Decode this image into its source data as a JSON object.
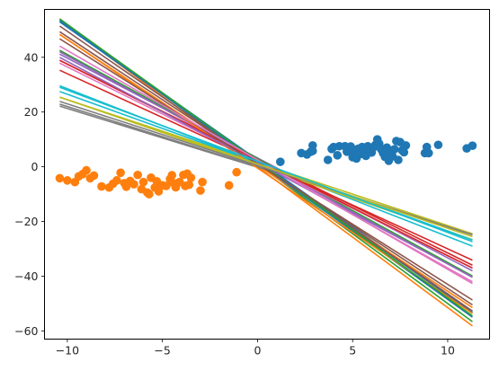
{
  "chart_data": {
    "type": "scatter",
    "title": "",
    "xlabel": "",
    "ylabel": "",
    "xlim": [
      -11.2,
      12.2
    ],
    "ylim": [
      -63,
      57.5
    ],
    "x_ticks": [
      -10,
      -5,
      0,
      5,
      10
    ],
    "y_ticks": [
      -60,
      -40,
      -20,
      0,
      20,
      40
    ],
    "x_tick_labels": [
      "−10",
      "−5",
      "0",
      "5",
      "10"
    ],
    "y_tick_labels": [
      "−60",
      "−40",
      "−20",
      "0",
      "20",
      "40"
    ],
    "grid": false,
    "line_x_range": [
      -10.4,
      11.3
    ],
    "scatter_series": [
      {
        "color": "#1f77b4",
        "points": [
          [
            1.2,
            1.8
          ],
          [
            2.3,
            5.0
          ],
          [
            2.6,
            4.5
          ],
          [
            2.8,
            5.5
          ],
          [
            2.9,
            7.8
          ],
          [
            2.9,
            5.8
          ],
          [
            3.7,
            2.5
          ],
          [
            3.9,
            6.5
          ],
          [
            4.0,
            7.2
          ],
          [
            4.2,
            4.2
          ],
          [
            4.3,
            7.5
          ],
          [
            4.6,
            7.5
          ],
          [
            4.7,
            5.5
          ],
          [
            4.8,
            6.3
          ],
          [
            4.9,
            7.4
          ],
          [
            5.0,
            3.5
          ],
          [
            5.1,
            5.0
          ],
          [
            5.2,
            3.0
          ],
          [
            5.3,
            6.6
          ],
          [
            5.4,
            4.6
          ],
          [
            5.5,
            7.2
          ],
          [
            5.6,
            5.3
          ],
          [
            5.7,
            4.0
          ],
          [
            5.8,
            7.5
          ],
          [
            5.9,
            6.0
          ],
          [
            6.0,
            5.2
          ],
          [
            6.1,
            7.1
          ],
          [
            6.2,
            8.0
          ],
          [
            6.3,
            10.0
          ],
          [
            6.4,
            8.4
          ],
          [
            6.5,
            6.4
          ],
          [
            6.6,
            5.0
          ],
          [
            6.7,
            3.6
          ],
          [
            6.8,
            7.0
          ],
          [
            6.9,
            2.2
          ],
          [
            7.0,
            5.5
          ],
          [
            7.1,
            3.8
          ],
          [
            7.2,
            6.4
          ],
          [
            7.3,
            9.4
          ],
          [
            7.4,
            2.5
          ],
          [
            7.5,
            9.0
          ],
          [
            7.6,
            6.0
          ],
          [
            7.7,
            5.3
          ],
          [
            7.8,
            7.8
          ],
          [
            8.8,
            5.0
          ],
          [
            8.9,
            7.2
          ],
          [
            9.0,
            5.0
          ],
          [
            9.5,
            8.0
          ],
          [
            11.0,
            6.7
          ],
          [
            11.3,
            7.7
          ]
        ]
      },
      {
        "color": "#ff7f0e",
        "points": [
          [
            -10.4,
            -4.2
          ],
          [
            -10.0,
            -5.0
          ],
          [
            -9.6,
            -5.6
          ],
          [
            -9.4,
            -3.5
          ],
          [
            -9.2,
            -2.7
          ],
          [
            -9.0,
            -1.3
          ],
          [
            -8.8,
            -4.2
          ],
          [
            -8.6,
            -3.2
          ],
          [
            -8.2,
            -7.2
          ],
          [
            -7.8,
            -7.6
          ],
          [
            -7.6,
            -6.2
          ],
          [
            -7.4,
            -5.0
          ],
          [
            -7.2,
            -2.2
          ],
          [
            -7.0,
            -6.0
          ],
          [
            -6.9,
            -7.3
          ],
          [
            -6.7,
            -5.2
          ],
          [
            -6.5,
            -6.4
          ],
          [
            -6.3,
            -3.0
          ],
          [
            -6.1,
            -8.2
          ],
          [
            -6.0,
            -5.6
          ],
          [
            -5.8,
            -9.4
          ],
          [
            -5.7,
            -10.0
          ],
          [
            -5.6,
            -4.0
          ],
          [
            -5.4,
            -7.6
          ],
          [
            -5.3,
            -5.3
          ],
          [
            -5.2,
            -9.0
          ],
          [
            -5.0,
            -6.8
          ],
          [
            -4.8,
            -7.0
          ],
          [
            -4.6,
            -4.5
          ],
          [
            -4.5,
            -3.1
          ],
          [
            -4.4,
            -6.0
          ],
          [
            -4.3,
            -7.5
          ],
          [
            -4.1,
            -5.6
          ],
          [
            -3.9,
            -3.0
          ],
          [
            -3.8,
            -7.0
          ],
          [
            -3.7,
            -2.5
          ],
          [
            -3.6,
            -6.6
          ],
          [
            -3.5,
            -4.0
          ],
          [
            -3.0,
            -8.7
          ],
          [
            -2.9,
            -5.6
          ],
          [
            -1.5,
            -6.8
          ],
          [
            -1.1,
            -2.0
          ]
        ]
      }
    ],
    "line_series": [
      {
        "color": "#1f77b4",
        "slope": -4.9,
        "intercept": 2.5
      },
      {
        "color": "#ff7f0e",
        "slope": -5.15,
        "intercept": 0.0
      },
      {
        "color": "#2ca02c",
        "slope": -5.1,
        "intercept": 1.0
      },
      {
        "color": "#d62728",
        "slope": -3.45,
        "intercept": 3.0
      },
      {
        "color": "#9467bd",
        "slope": -3.65,
        "intercept": 3.2
      },
      {
        "color": "#8c564b",
        "slope": -4.6,
        "intercept": 1.5
      },
      {
        "color": "#e377c2",
        "slope": -3.9,
        "intercept": 2.0
      },
      {
        "color": "#7f7f7f",
        "slope": -2.15,
        "intercept": -0.2
      },
      {
        "color": "#bcbd22",
        "slope": -2.3,
        "intercept": 1.5
      },
      {
        "color": "#17becf",
        "slope": -2.7,
        "intercept": 1.5
      },
      {
        "color": "#1f77b4",
        "slope": -4.9,
        "intercept": 2.0
      },
      {
        "color": "#ff7f0e",
        "slope": -4.6,
        "intercept": 0.5
      },
      {
        "color": "#2ca02c",
        "slope": -3.8,
        "intercept": 3.0
      },
      {
        "color": "#d62728",
        "slope": -3.2,
        "intercept": 2.0
      },
      {
        "color": "#9467bd",
        "slope": -3.8,
        "intercept": 2.5
      },
      {
        "color": "#8c564b",
        "slope": -4.8,
        "intercept": 1.5
      },
      {
        "color": "#e377c2",
        "slope": -3.45,
        "intercept": 2.0
      },
      {
        "color": "#7f7f7f",
        "slope": -2.2,
        "intercept": 0.0
      },
      {
        "color": "#bcbd22",
        "slope": -2.4,
        "intercept": 0.5
      },
      {
        "color": "#17becf",
        "slope": -2.5,
        "intercept": 1.5
      },
      {
        "color": "#1f77b4",
        "slope": -5.0,
        "intercept": 1.5
      },
      {
        "color": "#ff7f0e",
        "slope": -4.7,
        "intercept": -0.5
      },
      {
        "color": "#2ca02c",
        "slope": -5.0,
        "intercept": 2.0
      },
      {
        "color": "#d62728",
        "slope": -3.5,
        "intercept": 2.5
      },
      {
        "color": "#9467bd",
        "slope": -3.7,
        "intercept": 1.5
      },
      {
        "color": "#8c564b",
        "slope": -4.4,
        "intercept": 1.0
      },
      {
        "color": "#e377c2",
        "slope": -4.0,
        "intercept": 2.5
      },
      {
        "color": "#7f7f7f",
        "slope": -2.25,
        "intercept": 0.5
      },
      {
        "color": "#bcbd22",
        "slope": -2.35,
        "intercept": 1.0
      },
      {
        "color": "#17becf",
        "slope": -2.6,
        "intercept": 2.0
      }
    ]
  }
}
